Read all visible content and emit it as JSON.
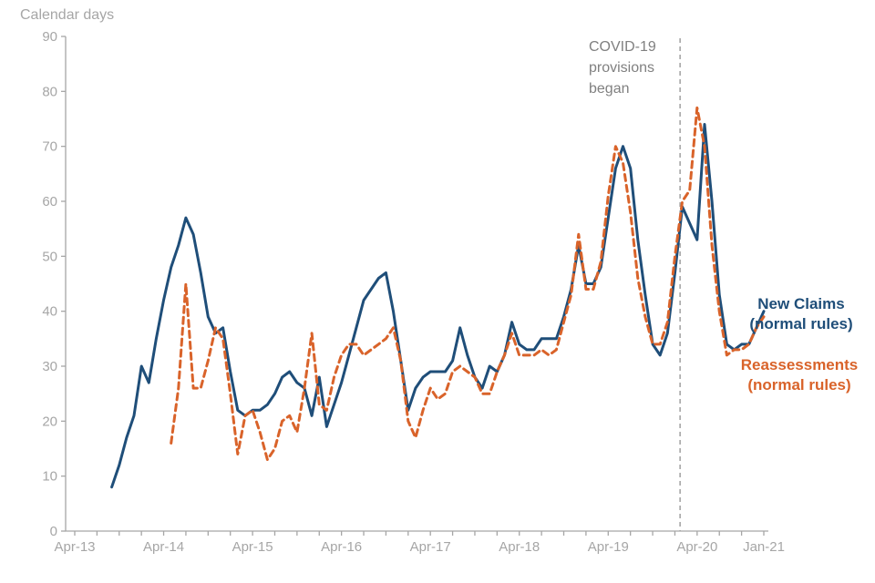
{
  "page": {
    "title": "Calendar days"
  },
  "annotation": {
    "covid_line1": "COVID-19",
    "covid_line2": "provisions",
    "covid_line3": "began"
  },
  "legend": {
    "new_claims_line1": "New Claims",
    "new_claims_line2": "(normal rules)",
    "reassessments_line1": "Reassessments",
    "reassessments_line2": "(normal rules)"
  },
  "colors": {
    "new_claims": "#1f4e79",
    "reassessments": "#d9632a",
    "axis": "#a6a6a6",
    "annotation_text": "#808080",
    "covid_line": "#a6a6a6"
  },
  "chart_data": {
    "type": "line",
    "title": "Calendar days",
    "ylabel": "Calendar days",
    "xlabel": "",
    "ylim": [
      0,
      90
    ],
    "ytick_step": 10,
    "grid": false,
    "x_unit": "month",
    "x_start": "2013-04",
    "x_end": "2021-01",
    "x_total_months": 94,
    "minor_tick_every_months": 3,
    "x_tick_labels": [
      "Apr-13",
      "Apr-14",
      "Apr-15",
      "Apr-16",
      "Apr-17",
      "Apr-18",
      "Apr-19",
      "Apr-20",
      "Jan-21"
    ],
    "x_tick_label_month_indices": [
      0,
      12,
      24,
      36,
      48,
      60,
      72,
      84,
      93
    ],
    "annotations": {
      "covid_line": {
        "text": "COVID-19 provisions began",
        "month": "2020-02/03",
        "month_index": 81.7,
        "style": "dashed-vertical"
      }
    },
    "series": [
      {
        "name": "New Claims (normal rules)",
        "color": "#1f4e79",
        "line_style": "solid",
        "start_month": "2013-09",
        "start_index": 5,
        "values": [
          8,
          12,
          17,
          21,
          30,
          27,
          35,
          42,
          48,
          52,
          57,
          54,
          47,
          39,
          36,
          37,
          29,
          22,
          21,
          22,
          22,
          23,
          25,
          28,
          29,
          27,
          26,
          21,
          28,
          19,
          23,
          27,
          32,
          37,
          42,
          44,
          46,
          47,
          40,
          31,
          22,
          26,
          28,
          29,
          29,
          29,
          31,
          37,
          32,
          28,
          26,
          30,
          29,
          32,
          38,
          34,
          33,
          33,
          35,
          35,
          35,
          39,
          44,
          52,
          45,
          45,
          48,
          57,
          66,
          70,
          66,
          53,
          43,
          34,
          32,
          36,
          47,
          59,
          56,
          53,
          74,
          60,
          43,
          34,
          33,
          34,
          34,
          37,
          40
        ]
      },
      {
        "name": "Reassessments (normal rules)",
        "color": "#d9632a",
        "line_style": "dashed",
        "start_month": "2014-05",
        "start_index": 13,
        "values": [
          16,
          26,
          45,
          26,
          26,
          31,
          37,
          35,
          25,
          14,
          21,
          22,
          18,
          13,
          15,
          20,
          21,
          18,
          26,
          36,
          23,
          22,
          28,
          32,
          34,
          34,
          32,
          33,
          34,
          35,
          37,
          31,
          20,
          17,
          22,
          26,
          24,
          25,
          29,
          30,
          29,
          28,
          25,
          25,
          29,
          32,
          36,
          32,
          32,
          32,
          33,
          32,
          33,
          38,
          43,
          54,
          44,
          44,
          49,
          61,
          70,
          67,
          58,
          46,
          39,
          34,
          34,
          38,
          50,
          60,
          62,
          77,
          70,
          52,
          40,
          32,
          33,
          33,
          34,
          37,
          39
        ]
      }
    ],
    "legend_position": "right-of-line-ends"
  }
}
